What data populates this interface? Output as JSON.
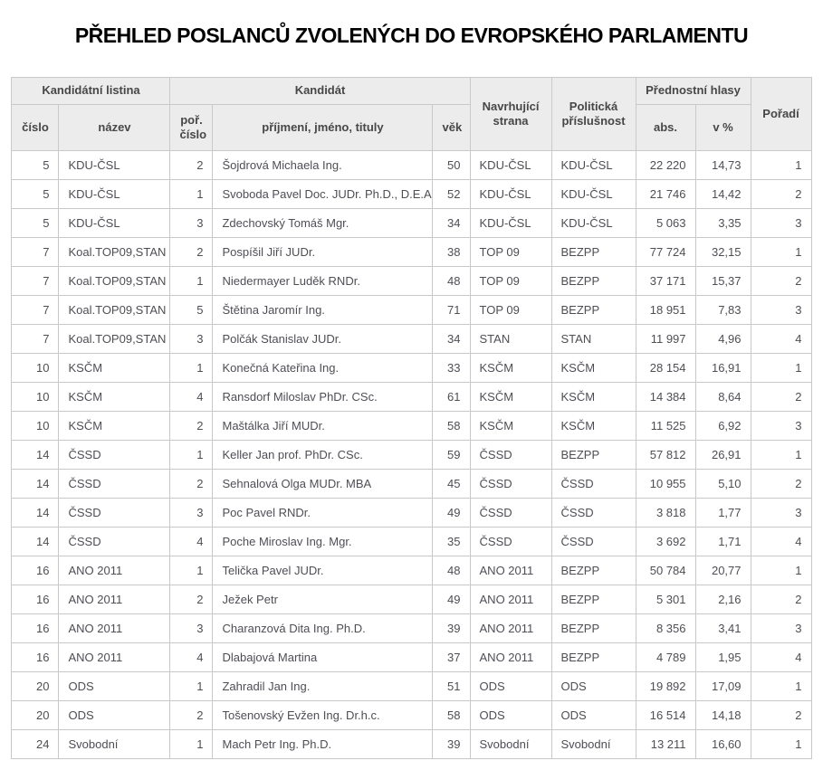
{
  "title": "PŘEHLED POSLANCŮ ZVOLENÝCH DO EVROPSKÉHO PARLAMENTU",
  "colors": {
    "header_bg": "#ececec",
    "border": "#c9c9c9",
    "header_text": "#474747",
    "body_text": "#4e4e55",
    "title_text": "#000000"
  },
  "table": {
    "header_groups": [
      {
        "label": "Kandidátní listina"
      },
      {
        "label": "Kandidát"
      },
      {
        "label": "Navrhující strana"
      },
      {
        "label": "Politická příslušnost"
      },
      {
        "label": "Přednostní hlasy"
      },
      {
        "label": "Pořadí"
      }
    ],
    "sub_headers": [
      "číslo",
      "název",
      "poř. číslo",
      "příjmení, jméno, tituly",
      "věk",
      "abs.",
      "v %"
    ],
    "column_keys": [
      "listina-cislo",
      "listina-nazev",
      "por-cislo",
      "prijmeni-jmeno-tituly",
      "vek",
      "navrhujici-strana",
      "politicka-prislusnost",
      "hlasy-abs",
      "hlasy-pct",
      "poradi"
    ],
    "column_align": [
      "r",
      "l",
      "r",
      "l",
      "r",
      "l",
      "l",
      "r",
      "r",
      "r"
    ],
    "rows": [
      [
        "5",
        "KDU-ČSL",
        "2",
        "Šojdrová Michaela Ing.",
        "50",
        "KDU-ČSL",
        "KDU-ČSL",
        "22 220",
        "14,73",
        "1"
      ],
      [
        "5",
        "KDU-ČSL",
        "1",
        "Svoboda Pavel Doc. JUDr. Ph.D., D.E.A.",
        "52",
        "KDU-ČSL",
        "KDU-ČSL",
        "21 746",
        "14,42",
        "2"
      ],
      [
        "5",
        "KDU-ČSL",
        "3",
        "Zdechovský Tomáš Mgr.",
        "34",
        "KDU-ČSL",
        "KDU-ČSL",
        "5 063",
        "3,35",
        "3"
      ],
      [
        "7",
        "Koal.TOP09,STAN",
        "2",
        "Pospíšil Jiří JUDr.",
        "38",
        "TOP 09",
        "BEZPP",
        "77 724",
        "32,15",
        "1"
      ],
      [
        "7",
        "Koal.TOP09,STAN",
        "1",
        "Niedermayer Luděk RNDr.",
        "48",
        "TOP 09",
        "BEZPP",
        "37 171",
        "15,37",
        "2"
      ],
      [
        "7",
        "Koal.TOP09,STAN",
        "5",
        "Štětina Jaromír Ing.",
        "71",
        "TOP 09",
        "BEZPP",
        "18 951",
        "7,83",
        "3"
      ],
      [
        "7",
        "Koal.TOP09,STAN",
        "3",
        "Polčák Stanislav JUDr.",
        "34",
        "STAN",
        "STAN",
        "11 997",
        "4,96",
        "4"
      ],
      [
        "10",
        "KSČM",
        "1",
        "Konečná Kateřina Ing.",
        "33",
        "KSČM",
        "KSČM",
        "28 154",
        "16,91",
        "1"
      ],
      [
        "10",
        "KSČM",
        "4",
        "Ransdorf Miloslav PhDr. CSc.",
        "61",
        "KSČM",
        "KSČM",
        "14 384",
        "8,64",
        "2"
      ],
      [
        "10",
        "KSČM",
        "2",
        "Maštálka Jiří MUDr.",
        "58",
        "KSČM",
        "KSČM",
        "11 525",
        "6,92",
        "3"
      ],
      [
        "14",
        "ČSSD",
        "1",
        "Keller Jan prof. PhDr. CSc.",
        "59",
        "ČSSD",
        "BEZPP",
        "57 812",
        "26,91",
        "1"
      ],
      [
        "14",
        "ČSSD",
        "2",
        "Sehnalová Olga MUDr. MBA",
        "45",
        "ČSSD",
        "ČSSD",
        "10 955",
        "5,10",
        "2"
      ],
      [
        "14",
        "ČSSD",
        "3",
        "Poc Pavel RNDr.",
        "49",
        "ČSSD",
        "ČSSD",
        "3 818",
        "1,77",
        "3"
      ],
      [
        "14",
        "ČSSD",
        "4",
        "Poche Miroslav Ing. Mgr.",
        "35",
        "ČSSD",
        "ČSSD",
        "3 692",
        "1,71",
        "4"
      ],
      [
        "16",
        "ANO 2011",
        "1",
        "Telička Pavel JUDr.",
        "48",
        "ANO 2011",
        "BEZPP",
        "50 784",
        "20,77",
        "1"
      ],
      [
        "16",
        "ANO 2011",
        "2",
        "Ježek Petr",
        "49",
        "ANO 2011",
        "BEZPP",
        "5 301",
        "2,16",
        "2"
      ],
      [
        "16",
        "ANO 2011",
        "3",
        "Charanzová Dita Ing. Ph.D.",
        "39",
        "ANO 2011",
        "BEZPP",
        "8 356",
        "3,41",
        "3"
      ],
      [
        "16",
        "ANO 2011",
        "4",
        "Dlabajová Martina",
        "37",
        "ANO 2011",
        "BEZPP",
        "4 789",
        "1,95",
        "4"
      ],
      [
        "20",
        "ODS",
        "1",
        "Zahradil Jan Ing.",
        "51",
        "ODS",
        "ODS",
        "19 892",
        "17,09",
        "1"
      ],
      [
        "20",
        "ODS",
        "2",
        "Tošenovský Evžen Ing. Dr.h.c.",
        "58",
        "ODS",
        "ODS",
        "16 514",
        "14,18",
        "2"
      ],
      [
        "24",
        "Svobodní",
        "1",
        "Mach Petr Ing. Ph.D.",
        "39",
        "Svobodní",
        "Svobodní",
        "13 211",
        "16,60",
        "1"
      ]
    ]
  }
}
